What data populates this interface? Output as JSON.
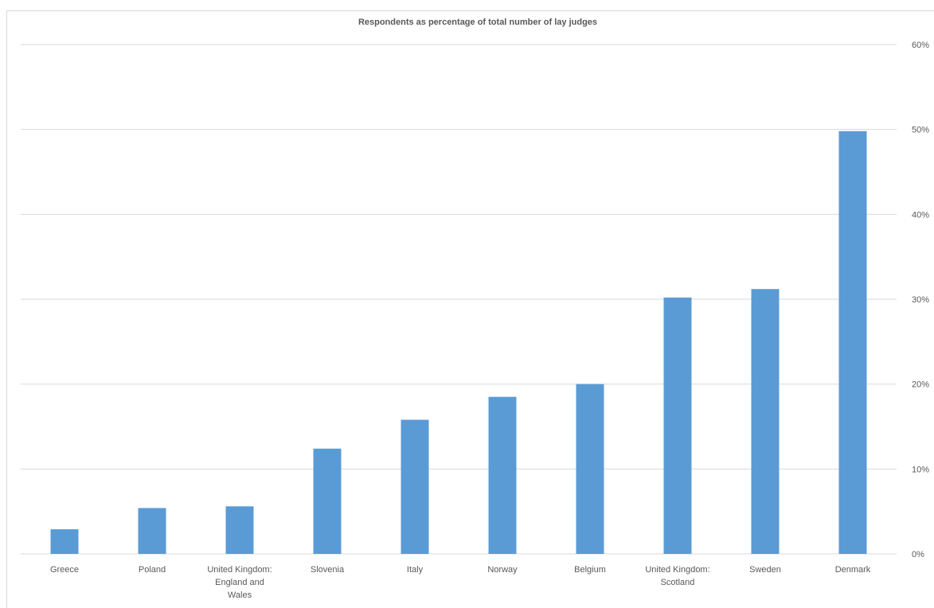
{
  "chart_data": {
    "type": "bar",
    "title": "Respondents as percentage of total number of lay judges",
    "categories": [
      [
        "Greece"
      ],
      [
        "Poland"
      ],
      [
        "United Kingdom:",
        "England and",
        "Wales"
      ],
      [
        "Slovenia"
      ],
      [
        "Italy"
      ],
      [
        "Norway"
      ],
      [
        "Belgium"
      ],
      [
        "United Kingdom:",
        "Scotland"
      ],
      [
        "Sweden"
      ],
      [
        "Denmark"
      ]
    ],
    "values": [
      2.9,
      5.4,
      5.6,
      12.4,
      15.8,
      18.5,
      20.0,
      30.2,
      31.2,
      49.8
    ],
    "y_ticks": [
      "0%",
      "10%",
      "20%",
      "30%",
      "40%",
      "50%",
      "60%"
    ],
    "ylim": [
      0,
      60
    ],
    "y_axis_side": "right",
    "grid": true,
    "bar_color": "#5b9bd5",
    "grid_color": "#d9d9d9",
    "text_color": "#595959"
  }
}
